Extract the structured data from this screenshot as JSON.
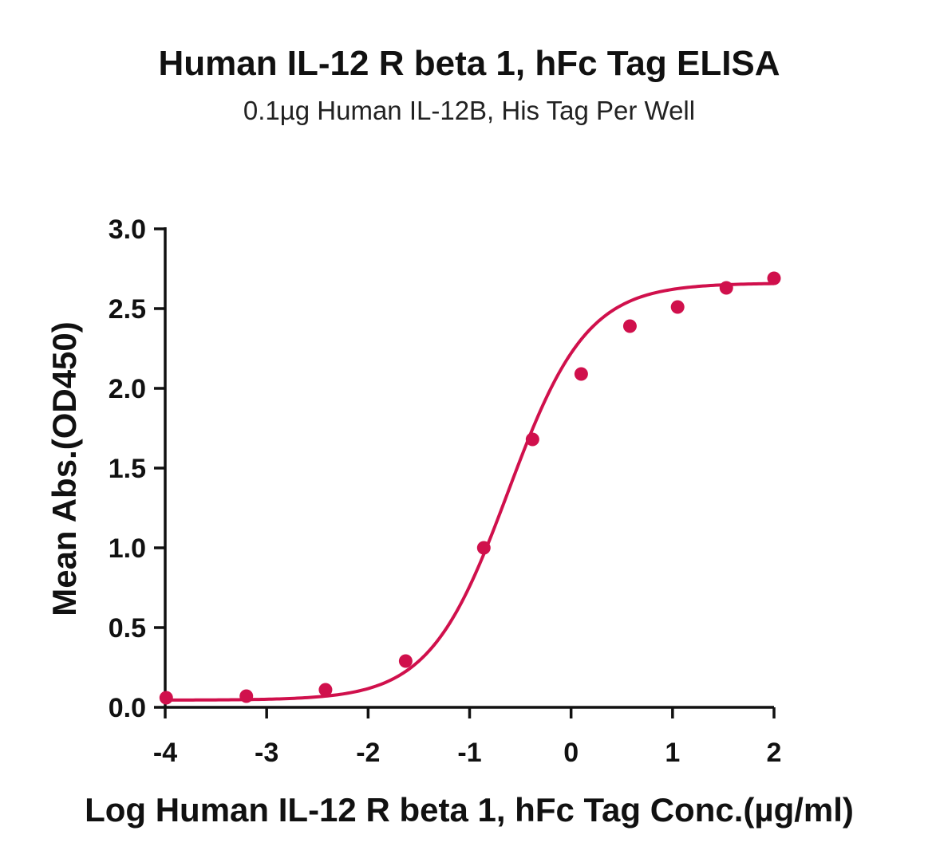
{
  "chart_data": {
    "type": "scatter",
    "title": "Human IL-12 R beta 1, hFc Tag ELISA",
    "subtitle": "0.1µg Human IL-12B, His Tag Per Well",
    "xlabel": "Log Human IL-12 R beta 1, hFc Tag Conc.(µg/ml)",
    "ylabel": "Mean Abs.(OD450)",
    "xlim": [
      -4,
      2
    ],
    "ylim": [
      0,
      3.0
    ],
    "xticks": [
      -4,
      -3,
      -2,
      -1,
      0,
      1,
      2
    ],
    "xtick_labels": [
      "-4",
      "-3",
      "-2",
      "-1",
      "0",
      "1",
      "2"
    ],
    "yticks": [
      0,
      0.5,
      1.0,
      1.5,
      2.0,
      2.5,
      3.0
    ],
    "ytick_labels": [
      "0.0",
      "0.5",
      "1.0",
      "1.5",
      "2.0",
      "2.5",
      "3.0"
    ],
    "grid": false,
    "color": "#d0104c",
    "series": [
      {
        "x": [
          -3.99,
          -3.2,
          -2.42,
          -1.63,
          -0.86,
          -0.38,
          0.1,
          0.58,
          1.05,
          1.53,
          2.0
        ],
        "y": [
          0.06,
          0.07,
          0.11,
          0.29,
          1.0,
          1.68,
          2.09,
          2.39,
          2.51,
          2.63,
          2.69
        ]
      }
    ],
    "fit": {
      "model": "4PL",
      "bottom": 0.045,
      "top": 2.66,
      "log_ec50": -0.62,
      "hill": 1.12
    }
  }
}
